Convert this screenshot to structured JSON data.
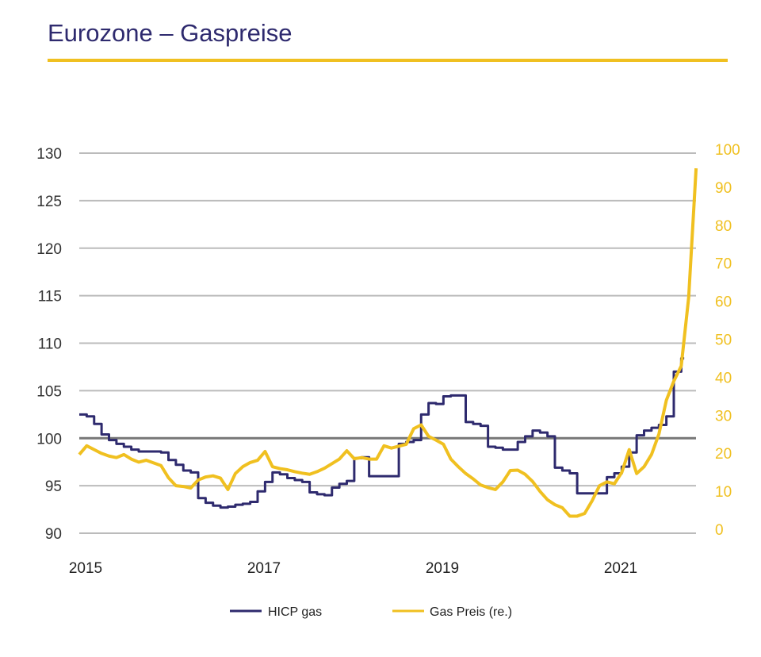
{
  "title": "Eurozone – Gaspreise",
  "colors": {
    "hicp": "#2E2A6E",
    "gas": "#F0C020",
    "title": "#2E2A6E",
    "rule": "#F0C020",
    "grid": "#BBBBBB",
    "baseline": "#777777"
  },
  "chart_data": {
    "type": "line",
    "title": "Eurozone – Gaspreise",
    "x_start": "2015-01",
    "x_frequency": "monthly",
    "x_ticks": [
      "2015",
      "2017",
      "2019",
      "2021"
    ],
    "y_left": {
      "range": [
        90,
        130
      ],
      "ticks": [
        "90",
        "95",
        "100",
        "105",
        "110",
        "115",
        "120",
        "125",
        "130"
      ],
      "reference_line": 100
    },
    "y_right": {
      "range": [
        0,
        100
      ],
      "ticks": [
        "0",
        "10",
        "20",
        "30",
        "40",
        "50",
        "60",
        "70",
        "80",
        "90",
        "100"
      ]
    },
    "grid": true,
    "legend_placement": "bottom",
    "series": [
      {
        "name": "HICP gas",
        "axis": "left",
        "color": "#2E2A6E",
        "step": true,
        "values": [
          102.5,
          102.3,
          101.5,
          100.4,
          99.8,
          99.4,
          99.1,
          98.8,
          98.6,
          98.6,
          98.6,
          98.5,
          97.7,
          97.2,
          96.6,
          96.4,
          93.7,
          93.2,
          92.9,
          92.7,
          92.8,
          93.0,
          93.1,
          93.3,
          94.4,
          95.4,
          96.4,
          96.2,
          95.8,
          95.6,
          95.4,
          94.3,
          94.1,
          94.0,
          94.8,
          95.2,
          95.5,
          97.9,
          98.0,
          96.0,
          96.0,
          96.0,
          96.0,
          99.4,
          99.6,
          99.8,
          102.5,
          103.7,
          103.6,
          104.4,
          104.5,
          104.5,
          101.7,
          101.5,
          101.3,
          99.1,
          99.0,
          98.8,
          98.8,
          99.6,
          100.2,
          100.8,
          100.6,
          100.2,
          96.9,
          96.6,
          96.3,
          94.2,
          94.2,
          94.2,
          94.2,
          95.9,
          96.3,
          97.0,
          98.5,
          100.3,
          100.8,
          101.1,
          101.4,
          102.3,
          107.0,
          108.4
        ]
      },
      {
        "name": "Gas Preis (re.)",
        "axis": "right",
        "color": "#F0C020",
        "step": false,
        "values": [
          20.7,
          23.0,
          22.0,
          21.0,
          20.3,
          19.9,
          20.7,
          19.5,
          18.7,
          19.2,
          18.5,
          17.8,
          14.6,
          12.5,
          12.3,
          11.9,
          14.0,
          14.8,
          15.1,
          14.5,
          11.5,
          15.7,
          17.5,
          18.6,
          19.2,
          21.5,
          17.5,
          17.0,
          16.7,
          16.2,
          15.8,
          15.5,
          16.2,
          17.1,
          18.3,
          19.5,
          21.7,
          19.6,
          19.9,
          19.5,
          19.5,
          23.0,
          22.4,
          22.9,
          23.4,
          27.5,
          28.5,
          25.5,
          24.5,
          23.4,
          19.5,
          17.5,
          15.7,
          14.3,
          12.7,
          12.0,
          11.5,
          13.5,
          16.5,
          16.6,
          15.5,
          13.6,
          11.0,
          8.8,
          7.5,
          6.7,
          4.5,
          4.5,
          5.2,
          8.5,
          12.5,
          13.5,
          13.0,
          16.0,
          22.0,
          15.7,
          17.5,
          20.7,
          26.1,
          35.0,
          40.0,
          44.0,
          62.0,
          96.0
        ]
      }
    ]
  }
}
